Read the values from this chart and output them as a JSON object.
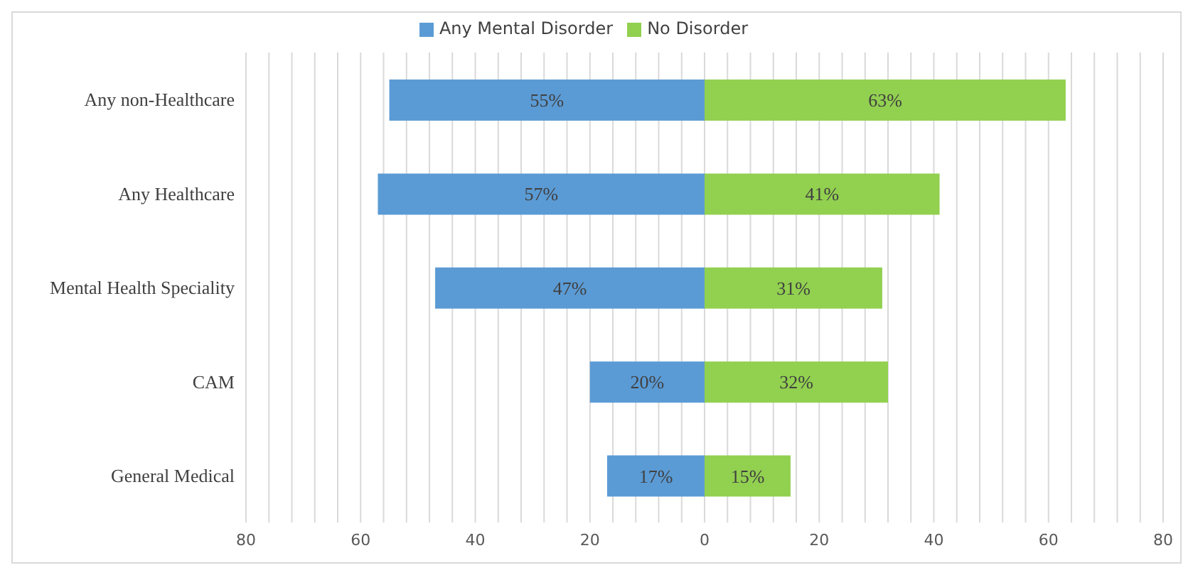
{
  "chart_data": {
    "type": "bar",
    "orientation": "horizontal",
    "categories": [
      "Any non-Healthcare",
      "Any Healthcare",
      "Mental Health Speciality",
      "CAM",
      "General Medical"
    ],
    "series": [
      {
        "name": "Any Mental Disorder",
        "color": "#5b9bd5",
        "base": [
          -55,
          -57,
          -47,
          -20,
          -17
        ],
        "values": [
          55,
          57,
          47,
          20,
          17
        ],
        "value_labels": [
          "55%",
          "57%",
          "47%",
          "20%",
          "17%"
        ]
      },
      {
        "name": "No Disorder",
        "color": "#92d050",
        "base": [
          0,
          0,
          0,
          0,
          0
        ],
        "values": [
          63,
          41,
          31,
          32,
          15
        ],
        "value_labels": [
          "63%",
          "41%",
          "31%",
          "32%",
          "15%"
        ]
      }
    ],
    "xlim": [
      -80,
      80
    ],
    "xticks": [
      {
        "value": -80,
        "label": "80"
      },
      {
        "value": -76,
        "label": null
      },
      {
        "value": -72,
        "label": null
      },
      {
        "value": -68,
        "label": null
      },
      {
        "value": -64,
        "label": null
      },
      {
        "value": -60,
        "label": "60"
      },
      {
        "value": -56,
        "label": null
      },
      {
        "value": -52,
        "label": null
      },
      {
        "value": -48,
        "label": null
      },
      {
        "value": -44,
        "label": null
      },
      {
        "value": -40,
        "label": "40"
      },
      {
        "value": -36,
        "label": null
      },
      {
        "value": -32,
        "label": null
      },
      {
        "value": -28,
        "label": null
      },
      {
        "value": -24,
        "label": null
      },
      {
        "value": -20,
        "label": "20"
      },
      {
        "value": -16,
        "label": null
      },
      {
        "value": -12,
        "label": null
      },
      {
        "value": -8,
        "label": null
      },
      {
        "value": -4,
        "label": null
      },
      0,
      {
        "value": 4,
        "label": null
      },
      {
        "value": 8,
        "label": null
      },
      {
        "value": 12,
        "label": null
      },
      {
        "value": 16,
        "label": null
      },
      20,
      {
        "value": 24,
        "label": null
      },
      {
        "value": 28,
        "label": null
      },
      {
        "value": 32,
        "label": null
      },
      {
        "value": 36,
        "label": null
      },
      40,
      {
        "value": 44,
        "label": null
      },
      {
        "value": 48,
        "label": null
      },
      {
        "value": 52,
        "label": null
      },
      {
        "value": 56,
        "label": null
      },
      60,
      {
        "value": 64,
        "label": null
      },
      {
        "value": 68,
        "label": null
      },
      {
        "value": 72,
        "label": null
      },
      {
        "value": 76,
        "label": null
      },
      80
    ],
    "grid": "x",
    "legend": "top"
  }
}
